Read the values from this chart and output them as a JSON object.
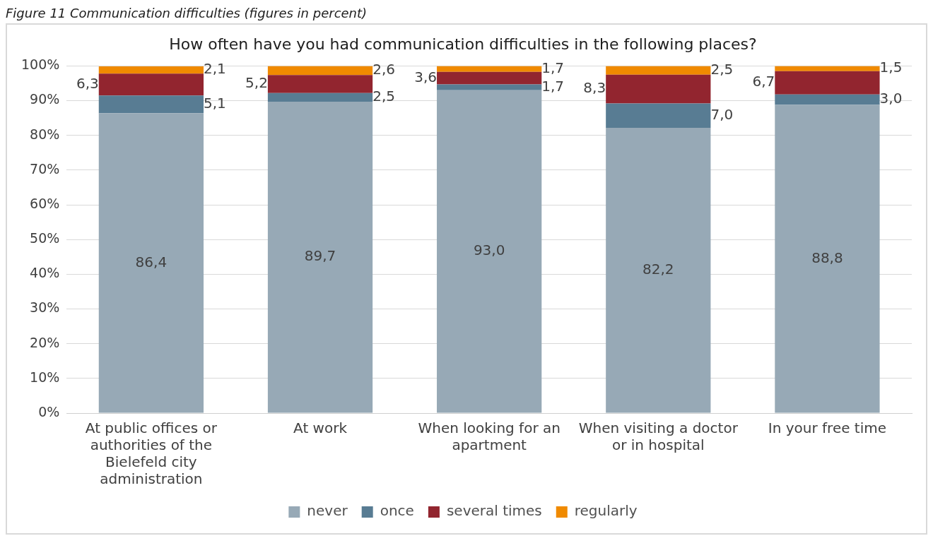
{
  "chart_data": {
    "type": "bar",
    "stacked": true,
    "title": "How often have you had communication difficulties in the following places?",
    "annotations": [
      "Figure 11 Communication difficulties (figures in percent)"
    ],
    "categories": [
      "At public offices or authorities of the Bielefeld city administration",
      "At work",
      "When looking for an apartment",
      "When visiting a doctor or in hospital",
      "In your free time"
    ],
    "series": [
      {
        "name": "never",
        "color": "#97a9b6",
        "values": [
          86.4,
          89.7,
          93.0,
          82.2,
          88.8
        ],
        "value_labels": [
          "86,4",
          "89,7",
          "93,0",
          "82,2",
          "88,8"
        ]
      },
      {
        "name": "once",
        "color": "#587c93",
        "values": [
          5.1,
          2.5,
          1.7,
          7.0,
          3.0
        ],
        "value_labels": [
          "5,1",
          "2,5",
          "1,7",
          "7,0",
          "3,0"
        ]
      },
      {
        "name": "several times",
        "color": "#92252f",
        "values": [
          6.3,
          5.2,
          3.6,
          8.3,
          6.7
        ],
        "value_labels": [
          "6,3",
          "5,2",
          "3,6",
          "8,3",
          "6,7"
        ]
      },
      {
        "name": "regularly",
        "color": "#f08a00",
        "values": [
          2.1,
          2.6,
          1.7,
          2.5,
          1.5
        ],
        "value_labels": [
          "2,1",
          "2,6",
          "1,7",
          "2,5",
          "1,5"
        ]
      }
    ],
    "ylim": [
      0,
      100
    ],
    "yticks": [
      {
        "value": 0,
        "label": "0%"
      },
      {
        "value": 10,
        "label": "10%"
      },
      {
        "value": 20,
        "label": "20%"
      },
      {
        "value": 30,
        "label": "30%"
      },
      {
        "value": 40,
        "label": "40%"
      },
      {
        "value": 50,
        "label": "50%"
      },
      {
        "value": 60,
        "label": "60%"
      },
      {
        "value": 70,
        "label": "70%"
      },
      {
        "value": 80,
        "label": "80%"
      },
      {
        "value": 90,
        "label": "90%"
      },
      {
        "value": 100,
        "label": "100%"
      }
    ],
    "grid": "y",
    "legend": "bottom"
  }
}
